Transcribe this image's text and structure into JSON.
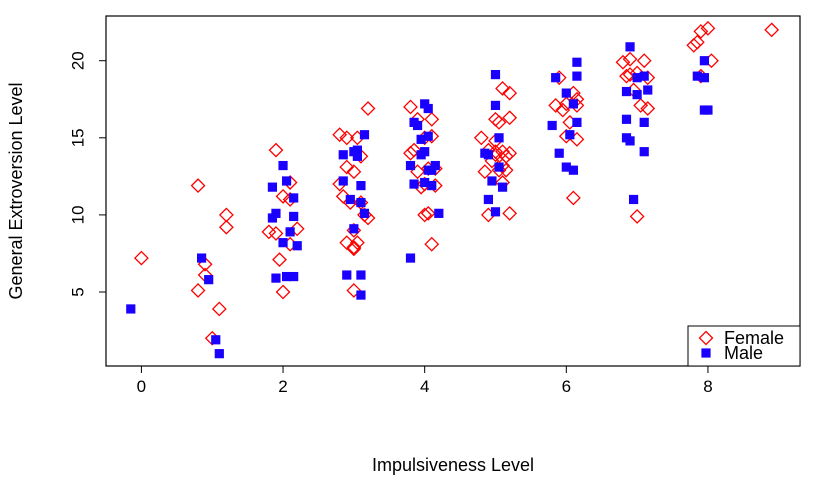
{
  "chart_data": {
    "type": "scatter",
    "xlabel": "Impulsiveness Level",
    "ylabel": "General Extroversion Level",
    "xlim": [
      -0.5,
      9.3
    ],
    "ylim": [
      0.2,
      22.9
    ],
    "x_ticks": [
      0,
      2,
      4,
      6,
      8
    ],
    "y_ticks": [
      5,
      10,
      15,
      20
    ],
    "x_tick_labels": [
      "0",
      "2",
      "4",
      "6",
      "8"
    ],
    "y_tick_labels": [
      "5",
      "10",
      "15",
      "20"
    ],
    "grid": false,
    "legend_position": "bottom-right",
    "series": [
      {
        "name": "Female",
        "marker": "diamond-open",
        "color": "#ff0000",
        "points": [
          [
            0.0,
            7.2
          ],
          [
            0.8,
            11.9
          ],
          [
            0.8,
            5.1
          ],
          [
            0.9,
            6.1
          ],
          [
            0.9,
            6.8
          ],
          [
            1.0,
            2.0
          ],
          [
            1.1,
            3.9
          ],
          [
            1.2,
            10.0
          ],
          [
            1.2,
            9.2
          ],
          [
            1.8,
            8.9
          ],
          [
            1.9,
            8.8
          ],
          [
            1.9,
            14.2
          ],
          [
            1.95,
            7.1
          ],
          [
            2.0,
            5.0
          ],
          [
            2.0,
            11.2
          ],
          [
            2.1,
            8.1
          ],
          [
            2.1,
            12.1
          ],
          [
            2.1,
            11.0
          ],
          [
            2.2,
            9.1
          ],
          [
            2.8,
            12.0
          ],
          [
            2.8,
            15.2
          ],
          [
            2.85,
            11.2
          ],
          [
            2.9,
            15.0
          ],
          [
            2.9,
            13.1
          ],
          [
            2.9,
            8.2
          ],
          [
            2.95,
            10.8
          ],
          [
            3.0,
            5.1
          ],
          [
            3.0,
            7.9
          ],
          [
            3.0,
            7.8
          ],
          [
            3.0,
            9.0
          ],
          [
            3.0,
            12.8
          ],
          [
            3.05,
            15.0
          ],
          [
            3.05,
            8.2
          ],
          [
            3.1,
            10.8
          ],
          [
            3.1,
            13.8
          ],
          [
            3.15,
            10.0
          ],
          [
            3.2,
            16.9
          ],
          [
            3.2,
            9.8
          ],
          [
            3.8,
            14.0
          ],
          [
            3.8,
            17.0
          ],
          [
            3.85,
            14.2
          ],
          [
            3.9,
            16.2
          ],
          [
            3.9,
            12.8
          ],
          [
            3.95,
            11.8
          ],
          [
            4.0,
            15.0
          ],
          [
            4.0,
            12.0
          ],
          [
            4.0,
            10.0
          ],
          [
            4.05,
            10.1
          ],
          [
            4.05,
            13.0
          ],
          [
            4.1,
            8.1
          ],
          [
            4.1,
            16.2
          ],
          [
            4.1,
            15.1
          ],
          [
            4.15,
            13.0
          ],
          [
            4.15,
            11.9
          ],
          [
            4.8,
            15.0
          ],
          [
            4.85,
            12.8
          ],
          [
            4.9,
            14.2
          ],
          [
            4.9,
            10.0
          ],
          [
            4.95,
            13.5
          ],
          [
            5.0,
            14.8
          ],
          [
            5.0,
            14.1
          ],
          [
            5.0,
            13.9
          ],
          [
            5.0,
            16.2
          ],
          [
            5.05,
            12.9
          ],
          [
            5.05,
            16.0
          ],
          [
            5.1,
            14.1
          ],
          [
            5.1,
            12.1
          ],
          [
            5.1,
            13.2
          ],
          [
            5.1,
            18.2
          ],
          [
            5.15,
            12.9
          ],
          [
            5.15,
            13.8
          ],
          [
            5.2,
            10.1
          ],
          [
            5.2,
            17.9
          ],
          [
            5.2,
            16.3
          ],
          [
            5.2,
            14.0
          ],
          [
            5.85,
            17.1
          ],
          [
            5.9,
            18.9
          ],
          [
            5.95,
            16.8
          ],
          [
            6.0,
            17.2
          ],
          [
            6.0,
            15.1
          ],
          [
            6.05,
            16.0
          ],
          [
            6.1,
            11.1
          ],
          [
            6.1,
            17.9
          ],
          [
            6.15,
            17.1
          ],
          [
            6.15,
            17.5
          ],
          [
            6.15,
            14.9
          ],
          [
            6.8,
            19.9
          ],
          [
            6.85,
            19.0
          ],
          [
            6.9,
            19.1
          ],
          [
            6.9,
            20.1
          ],
          [
            6.95,
            18.1
          ],
          [
            7.0,
            19.2
          ],
          [
            7.0,
            9.9
          ],
          [
            7.05,
            17.1
          ],
          [
            7.1,
            20.0
          ],
          [
            7.15,
            18.9
          ],
          [
            7.15,
            16.9
          ],
          [
            7.8,
            21.0
          ],
          [
            7.85,
            21.2
          ],
          [
            7.9,
            21.9
          ],
          [
            7.9,
            19.0
          ],
          [
            8.0,
            22.1
          ],
          [
            8.05,
            20.0
          ],
          [
            8.9,
            22.0
          ]
        ]
      },
      {
        "name": "Male",
        "marker": "square-filled",
        "color": "#1a00ff",
        "points": [
          [
            -0.15,
            3.9
          ],
          [
            0.85,
            7.2
          ],
          [
            0.95,
            5.8
          ],
          [
            1.05,
            1.9
          ],
          [
            1.1,
            1.0
          ],
          [
            1.85,
            11.8
          ],
          [
            1.85,
            9.8
          ],
          [
            1.9,
            5.9
          ],
          [
            1.9,
            10.1
          ],
          [
            2.0,
            8.2
          ],
          [
            2.0,
            13.2
          ],
          [
            2.05,
            12.2
          ],
          [
            2.05,
            6.0
          ],
          [
            2.1,
            8.9
          ],
          [
            2.15,
            6.0
          ],
          [
            2.15,
            9.9
          ],
          [
            2.15,
            11.1
          ],
          [
            2.2,
            8.0
          ],
          [
            2.85,
            13.9
          ],
          [
            2.85,
            12.2
          ],
          [
            2.9,
            6.1
          ],
          [
            2.95,
            11.0
          ],
          [
            3.0,
            14.1
          ],
          [
            3.0,
            9.1
          ],
          [
            3.05,
            14.2
          ],
          [
            3.05,
            13.8
          ],
          [
            3.1,
            11.9
          ],
          [
            3.1,
            10.8
          ],
          [
            3.1,
            6.1
          ],
          [
            3.1,
            4.8
          ],
          [
            3.15,
            15.2
          ],
          [
            3.15,
            10.1
          ],
          [
            3.8,
            7.2
          ],
          [
            3.8,
            13.2
          ],
          [
            3.85,
            16.0
          ],
          [
            3.85,
            12.0
          ],
          [
            3.9,
            15.8
          ],
          [
            3.95,
            14.9
          ],
          [
            3.95,
            13.9
          ],
          [
            4.0,
            17.2
          ],
          [
            4.0,
            12.1
          ],
          [
            4.0,
            14.1
          ],
          [
            4.05,
            12.9
          ],
          [
            4.05,
            15.1
          ],
          [
            4.05,
            16.9
          ],
          [
            4.1,
            11.9
          ],
          [
            4.1,
            12.9
          ],
          [
            4.15,
            13.2
          ],
          [
            4.2,
            10.1
          ],
          [
            4.85,
            14.0
          ],
          [
            4.9,
            13.9
          ],
          [
            4.9,
            11.0
          ],
          [
            4.95,
            12.2
          ],
          [
            5.0,
            17.1
          ],
          [
            5.0,
            19.1
          ],
          [
            5.0,
            10.2
          ],
          [
            5.05,
            15.0
          ],
          [
            5.05,
            13.1
          ],
          [
            5.1,
            11.8
          ],
          [
            5.8,
            15.8
          ],
          [
            5.85,
            18.9
          ],
          [
            5.9,
            14.0
          ],
          [
            6.0,
            17.9
          ],
          [
            6.0,
            13.1
          ],
          [
            6.05,
            15.2
          ],
          [
            6.1,
            12.9
          ],
          [
            6.1,
            17.2
          ],
          [
            6.15,
            19.0
          ],
          [
            6.15,
            16.0
          ],
          [
            6.15,
            19.9
          ],
          [
            6.85,
            16.2
          ],
          [
            6.85,
            15.0
          ],
          [
            6.85,
            18.0
          ],
          [
            6.9,
            20.9
          ],
          [
            6.9,
            14.8
          ],
          [
            6.95,
            11.0
          ],
          [
            7.0,
            17.8
          ],
          [
            7.0,
            18.9
          ],
          [
            7.1,
            14.1
          ],
          [
            7.1,
            16.0
          ],
          [
            7.1,
            19.0
          ],
          [
            7.15,
            18.1
          ],
          [
            7.85,
            19.0
          ],
          [
            7.95,
            18.9
          ],
          [
            7.95,
            20.0
          ],
          [
            7.95,
            16.8
          ],
          [
            8.0,
            16.8
          ]
        ]
      }
    ]
  }
}
